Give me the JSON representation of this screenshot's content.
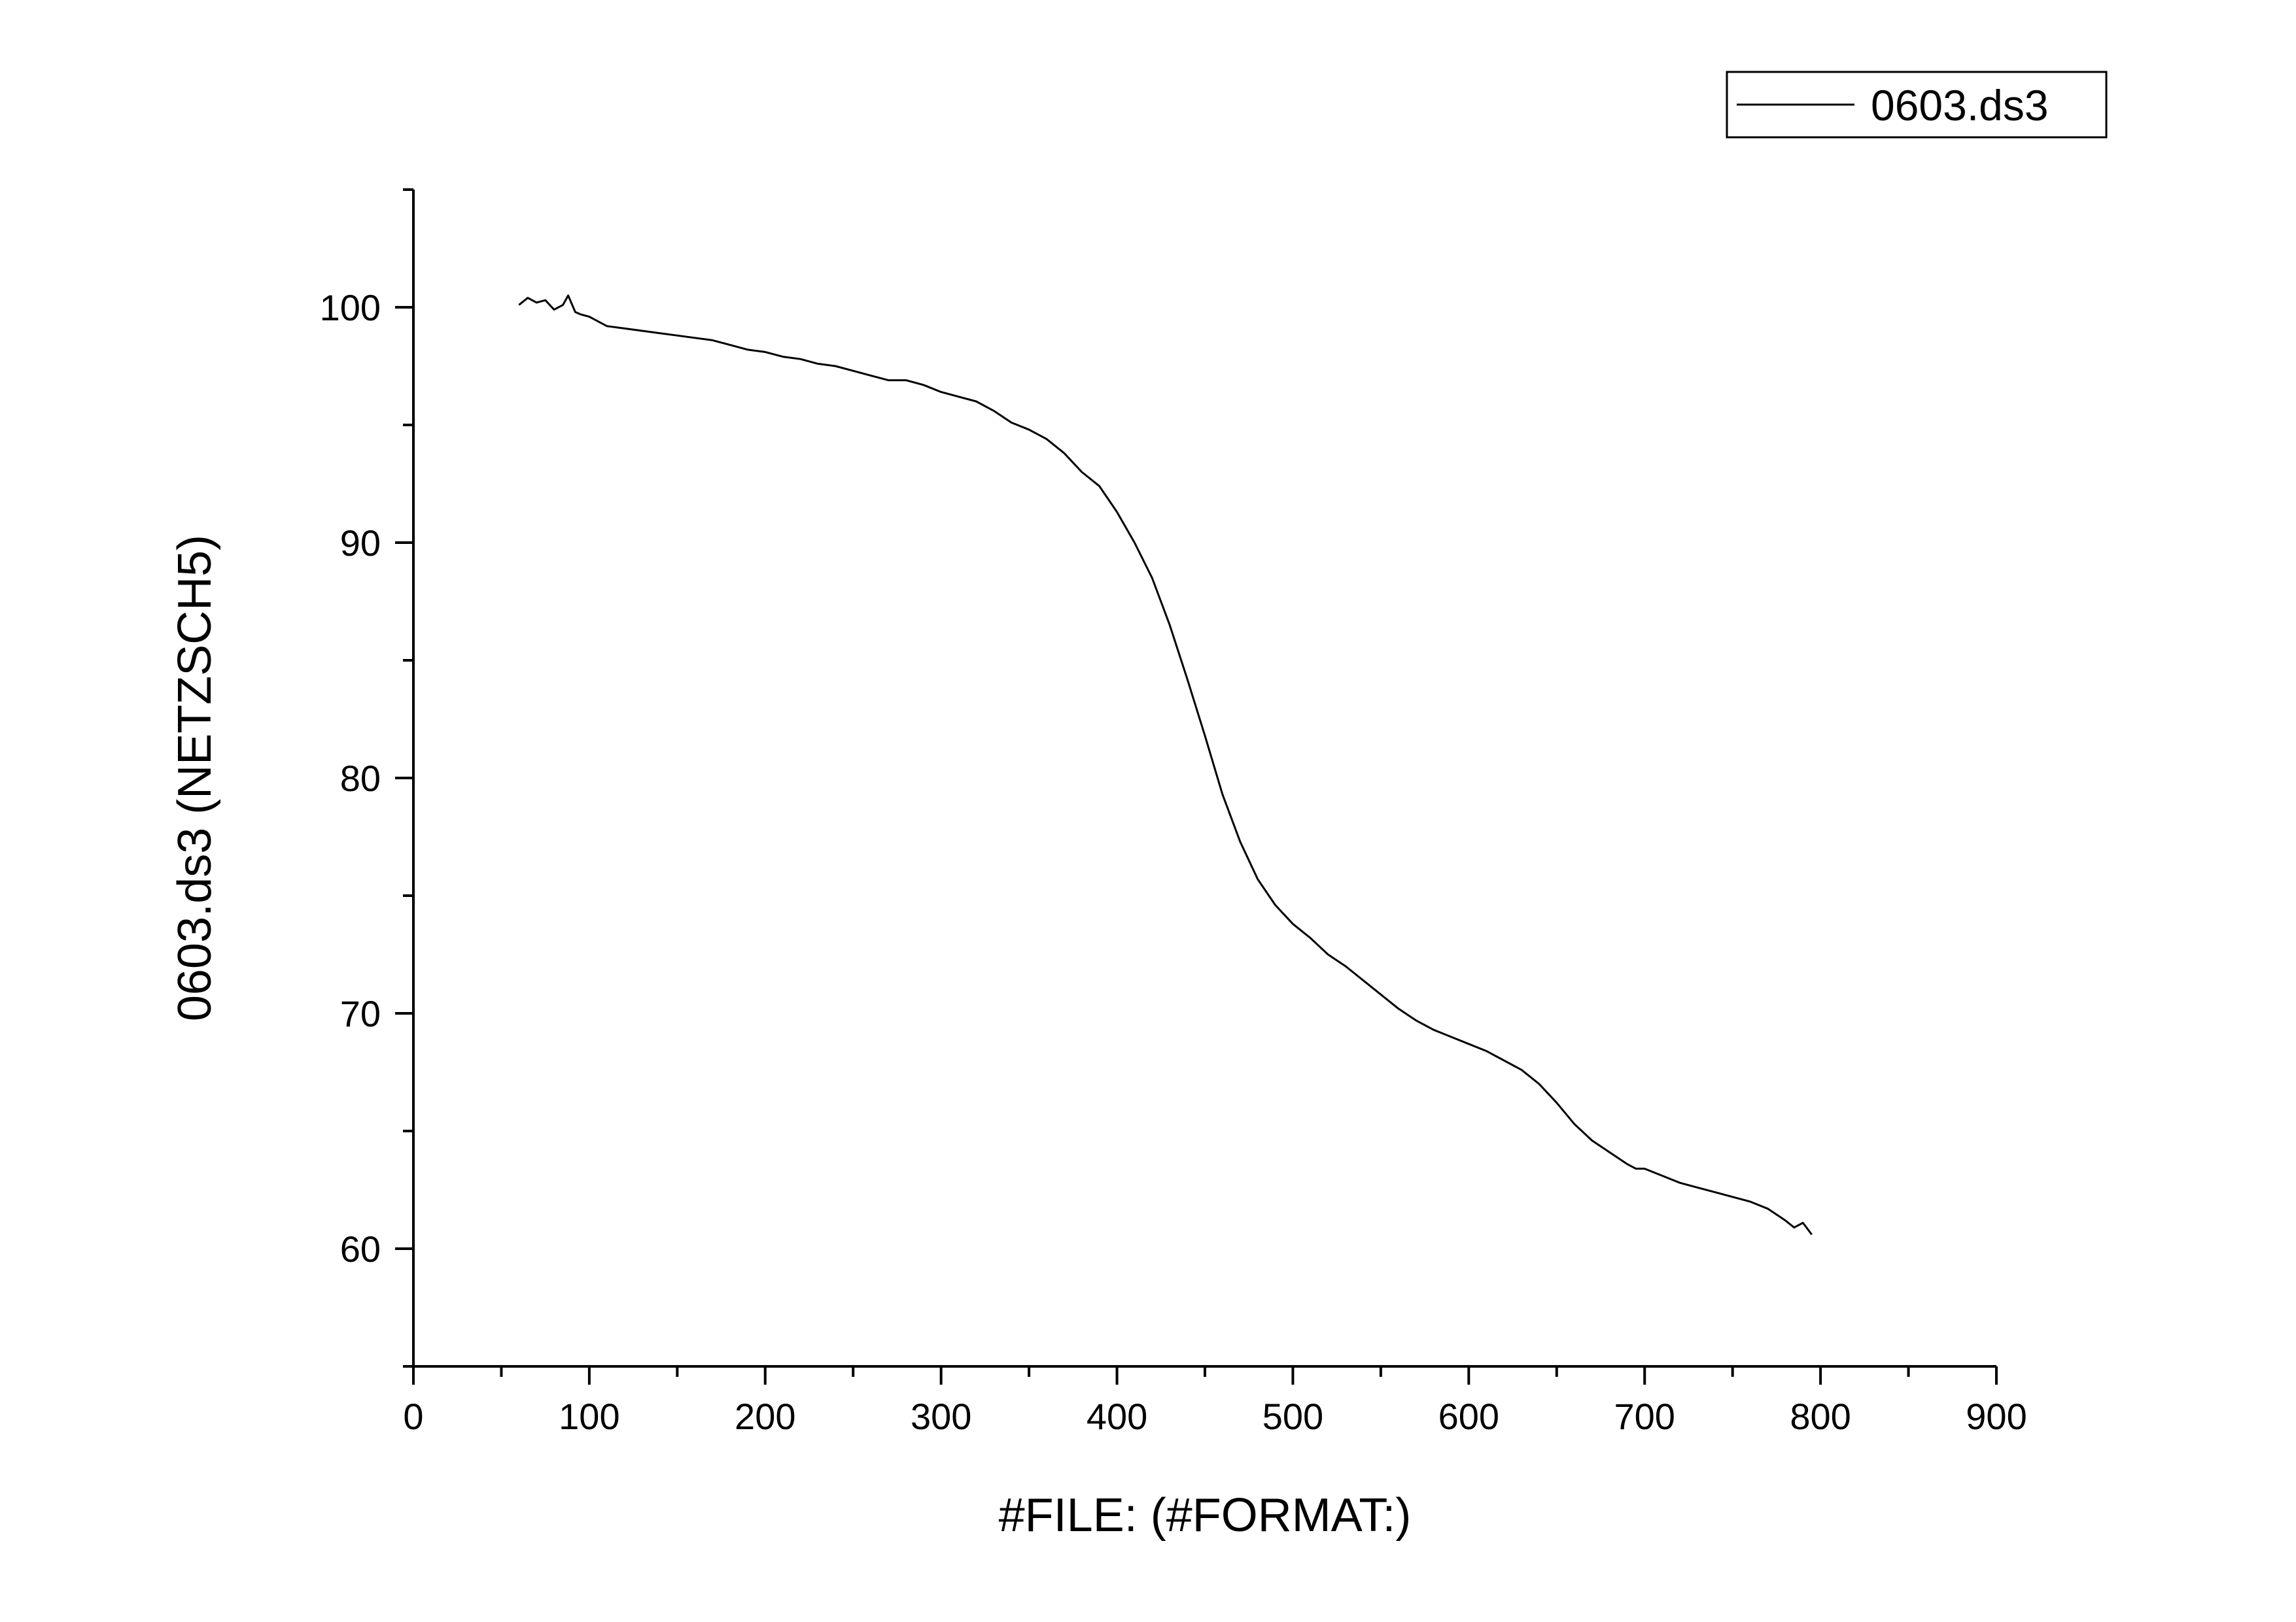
{
  "chart_data": {
    "type": "line",
    "xlabel": "#FILE: (#FORMAT:)",
    "ylabel": "0603.ds3 (NETZSCH5)",
    "xlim": [
      0,
      900
    ],
    "ylim": [
      55,
      105
    ],
    "xticks": [
      0,
      100,
      200,
      300,
      400,
      500,
      600,
      700,
      800,
      900
    ],
    "yticks": [
      60,
      70,
      80,
      90,
      100
    ],
    "x_minor_step": 50,
    "y_minor_step": 5,
    "grid": false,
    "legend_position": "top-right",
    "series": [
      {
        "name": "0603.ds3",
        "color": "#000000",
        "x": [
          60,
          65,
          70,
          75,
          80,
          85,
          88,
          92,
          95,
          100,
          110,
          120,
          130,
          140,
          150,
          160,
          170,
          180,
          190,
          200,
          210,
          220,
          230,
          240,
          250,
          260,
          270,
          280,
          290,
          300,
          310,
          320,
          330,
          340,
          350,
          360,
          370,
          380,
          390,
          400,
          410,
          420,
          430,
          440,
          450,
          460,
          470,
          480,
          490,
          500,
          510,
          520,
          530,
          540,
          550,
          560,
          570,
          580,
          590,
          600,
          610,
          620,
          630,
          640,
          650,
          660,
          670,
          680,
          690,
          695,
          700,
          710,
          720,
          730,
          740,
          750,
          760,
          770,
          780,
          785,
          790,
          795
        ],
        "y": [
          100.1,
          100.4,
          100.2,
          100.3,
          99.9,
          100.1,
          100.5,
          99.8,
          99.7,
          99.6,
          99.2,
          99.1,
          99.0,
          98.9,
          98.8,
          98.7,
          98.6,
          98.4,
          98.2,
          98.1,
          97.9,
          97.8,
          97.6,
          97.5,
          97.3,
          97.1,
          96.9,
          96.9,
          96.7,
          96.4,
          96.2,
          96.0,
          95.6,
          95.1,
          94.8,
          94.4,
          93.8,
          93.0,
          92.4,
          91.3,
          90.0,
          88.5,
          86.5,
          84.2,
          81.8,
          79.3,
          77.3,
          75.7,
          74.6,
          73.8,
          73.2,
          72.5,
          72.0,
          71.4,
          70.8,
          70.2,
          69.7,
          69.3,
          69.0,
          68.7,
          68.4,
          68.0,
          67.6,
          67.0,
          66.2,
          65.3,
          64.6,
          64.1,
          63.6,
          63.4,
          63.4,
          63.1,
          62.8,
          62.6,
          62.4,
          62.2,
          62.0,
          61.7,
          61.2,
          60.9,
          61.1,
          60.6
        ]
      }
    ]
  }
}
